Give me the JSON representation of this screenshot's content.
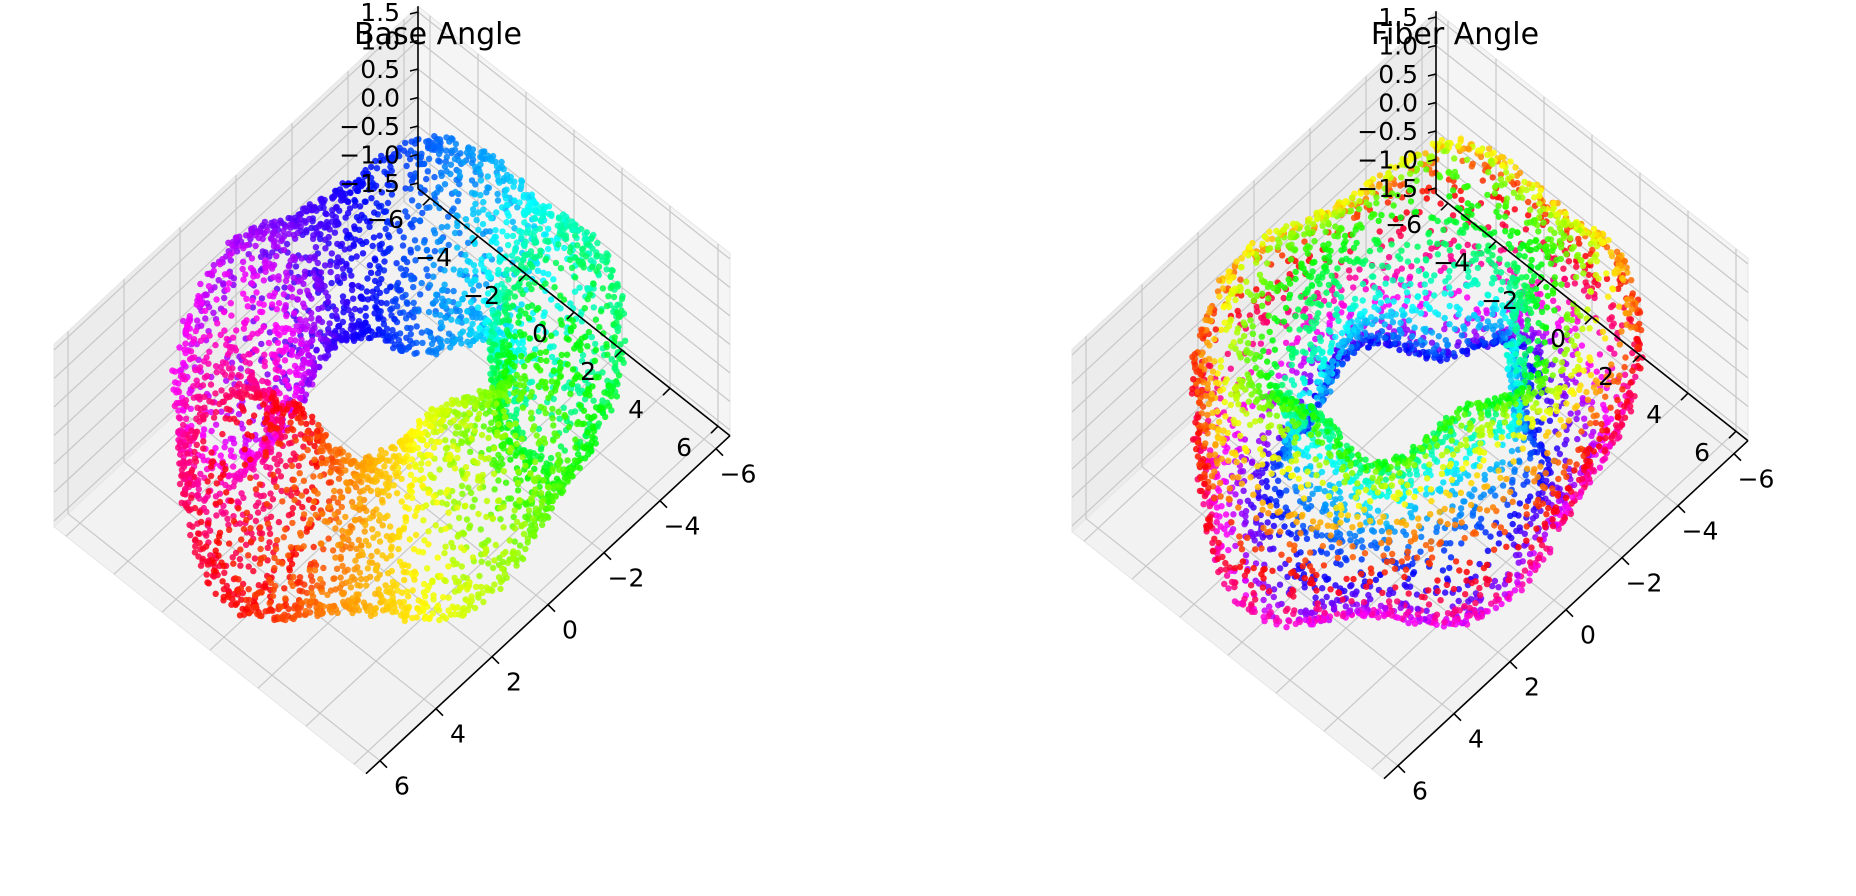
{
  "chart_data": [
    {
      "type": "scatter3d",
      "title": "Base Angle",
      "color_by": "base angle (hue cycle)",
      "colormap": "hsv",
      "surface": "twisted torus (tube winding around a ring)",
      "params": {
        "R": 4.5,
        "r": 1.5,
        "lobes": 5
      },
      "point_count": 4500,
      "xlim": [
        -6.5,
        6.5
      ],
      "ylim": [
        -6.5,
        6.5
      ],
      "zlim": [
        -1.6,
        1.6
      ],
      "xticks": [
        "−6",
        "−4",
        "−2",
        "0",
        "2",
        "4",
        "6"
      ],
      "yticks": [
        "−6",
        "−4",
        "−2",
        "0",
        "2",
        "4",
        "6"
      ],
      "zticks": [
        "−1.5",
        "−1.0",
        "−0.5",
        "0.0",
        "0.5",
        "1.0",
        "1.5"
      ],
      "grid": true
    },
    {
      "type": "scatter3d",
      "title": "Fiber Angle",
      "color_by": "fiber angle (hue cycle)",
      "colormap": "hsv",
      "surface": "twisted torus (tube winding around a ring)",
      "params": {
        "R": 4.5,
        "r": 1.5,
        "lobes": 5
      },
      "point_count": 4500,
      "xlim": [
        -6.5,
        6.5
      ],
      "ylim": [
        -6.5,
        6.5
      ],
      "zlim": [
        -1.6,
        1.6
      ],
      "xticks": [
        "−6",
        "−4",
        "−2",
        "0",
        "2",
        "4",
        "6"
      ],
      "yticks": [
        "−6",
        "−4",
        "−2",
        "0",
        "2",
        "4",
        "6"
      ],
      "zticks": [
        "−1.5",
        "−1.0",
        "−0.5",
        "0.0",
        "0.5",
        "1.0",
        "1.5"
      ],
      "grid": true
    }
  ]
}
